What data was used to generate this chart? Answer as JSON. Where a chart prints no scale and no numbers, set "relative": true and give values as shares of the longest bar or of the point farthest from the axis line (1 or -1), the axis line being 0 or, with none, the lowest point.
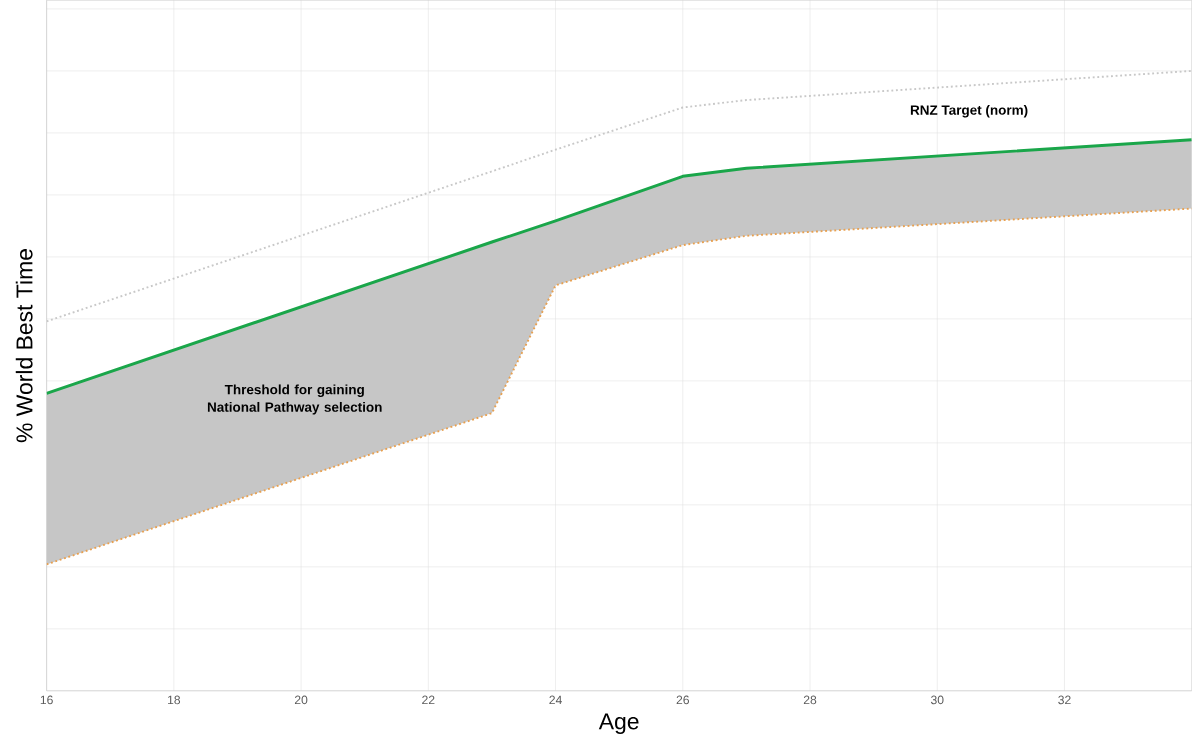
{
  "chart_data": {
    "type": "line",
    "relative": true,
    "xlabel": "Age",
    "ylabel": "% World Best Time",
    "x": [
      16,
      23,
      24,
      26,
      27,
      34
    ],
    "xlim": [
      16,
      34
    ],
    "xticks": [
      16,
      18,
      20,
      22,
      24,
      26,
      28,
      30,
      32
    ],
    "grid": true,
    "marker": "none",
    "series": [
      {
        "color": "#c8c8c8",
        "line_style": "dotted",
        "values": [
          0.596,
          0.838,
          0.873,
          0.941,
          0.953,
          1
        ]
      },
      {
        "color": "#1aa64a",
        "line_style": "solid",
        "values": [
          0.48,
          0.724,
          0.758,
          0.83,
          0.843,
          0.889
        ],
        "lower": [
          0.204,
          0.448,
          0.654,
          0.719,
          0.734,
          0.778
        ],
        "upper": [
          0.48,
          0.724,
          0.758,
          0.83,
          0.843,
          0.889
        ]
      },
      {
        "color": "#e8a050",
        "line_style": "dotted",
        "values": [
          0.204,
          0.448,
          0.654,
          0.719,
          0.734,
          0.778
        ]
      }
    ],
    "annotations": [
      "RNZ Target (norm)",
      "Threshold for gaining National Pathway selection"
    ]
  }
}
